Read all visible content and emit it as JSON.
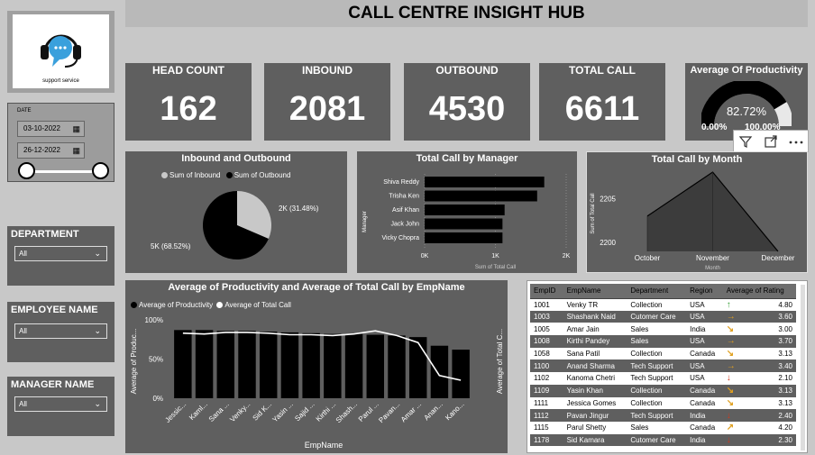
{
  "header": {
    "title": "CALL CENTRE INSIGHT HUB"
  },
  "logo": {
    "caption": "support service"
  },
  "date_slicer": {
    "label": "DATE",
    "start": "03-10-2022",
    "end": "26-12-2022"
  },
  "filters": [
    {
      "title": "DEPARTMENT",
      "value": "All"
    },
    {
      "title": "EMPLOYEE NAME",
      "value": "All"
    },
    {
      "title": "MANAGER NAME",
      "value": "All"
    }
  ],
  "kpis": [
    {
      "title": "HEAD COUNT",
      "value": "162"
    },
    {
      "title": "INBOUND",
      "value": "2081"
    },
    {
      "title": "OUTBOUND",
      "value": "4530"
    },
    {
      "title": "TOTAL CALL",
      "value": "6611"
    }
  ],
  "gauge": {
    "title": "Average Of Productivity",
    "value": "82.72%",
    "fraction": 0.8272,
    "min_label": "0.00%",
    "max_label": "100.00%"
  },
  "visual_header_icons": [
    "filter-icon",
    "focus-mode-icon",
    "more-options-icon"
  ],
  "chart_data": [
    {
      "type": "pie",
      "title": "Inbound and Outbound",
      "legend": [
        "Sum of Inbound",
        "Sum of Outbound"
      ],
      "slices": [
        {
          "name": "Sum of Inbound",
          "value": 2081,
          "label": "2K (31.48%)",
          "color": "#c8c8c8"
        },
        {
          "name": "Sum of Outbound",
          "value": 4530,
          "label": "5K (68.52%)",
          "color": "#000000"
        }
      ]
    },
    {
      "type": "bar",
      "orientation": "horizontal",
      "title": "Total Call by Manager",
      "categories": [
        "Shiva Reddy",
        "Trisha Ken",
        "Asif Khan",
        "Jack John",
        "Vicky Chopra"
      ],
      "values": [
        1690,
        1590,
        1130,
        1100,
        1100
      ],
      "xlabel": "Sum of Total Call",
      "ylabel": "Manager",
      "xlim": [
        0,
        2000
      ],
      "xticks": [
        "0K",
        "1K",
        "2K"
      ]
    },
    {
      "type": "area",
      "title": "Total Call by Month",
      "categories": [
        "October",
        "November",
        "December"
      ],
      "values": [
        2203,
        2208,
        2199
      ],
      "xlabel": "Month",
      "ylabel": "Sum of Total Call",
      "ylim": [
        2199,
        2208
      ],
      "yticks": [
        "2200",
        "2205"
      ]
    },
    {
      "type": "bar",
      "title": "Average of Productivity and Average of Total Call by EmpName",
      "legend": [
        "Average of Productivity",
        "Average of Total Call"
      ],
      "categories": [
        "Jessic...",
        "Kaml...",
        "Sana ...",
        "Venky...",
        "Sid K...",
        "Yasin ...",
        "Sajid ...",
        "Kirthi ...",
        "Shash...",
        "Parul ...",
        "Pavan...",
        "Amar ...",
        "Anan...",
        "Kano..."
      ],
      "series": [
        {
          "name": "Average of Productivity",
          "type": "bar",
          "values": [
            87,
            87,
            86,
            86,
            85,
            84,
            83,
            82,
            82,
            81,
            80,
            78,
            67,
            62
          ]
        },
        {
          "name": "Average of Total Call",
          "type": "line",
          "values": [
            41.5,
            41,
            42,
            42,
            41.5,
            40.5,
            40.5,
            40,
            41,
            43,
            40,
            35.5,
            14.5,
            11.5
          ]
        }
      ],
      "xlabel": "EmpName",
      "ylabel_left": "Average of Produc...",
      "ylabel_right": "Average of Total C...",
      "yticks_left": [
        "0%",
        "50%",
        "100%"
      ],
      "ylim_left": [
        0,
        100
      ],
      "ylim_right": [
        0,
        50
      ]
    }
  ],
  "rating_table": {
    "columns": [
      "EmpID",
      "EmpName",
      "Department",
      "Region",
      "Average of Rating"
    ],
    "rows": [
      {
        "id": "1001",
        "name": "Venky TR",
        "dept": "Collection",
        "region": "USA",
        "trend": "up",
        "rating": "4.80"
      },
      {
        "id": "1003",
        "name": "Shashank Naid",
        "dept": "Cutomer Care",
        "region": "USA",
        "trend": "right",
        "rating": "3.60"
      },
      {
        "id": "1005",
        "name": "Amar Jain",
        "dept": "Sales",
        "region": "India",
        "trend": "down-right",
        "rating": "3.00"
      },
      {
        "id": "1008",
        "name": "Kirthi Pandey",
        "dept": "Sales",
        "region": "USA",
        "trend": "right",
        "rating": "3.70"
      },
      {
        "id": "1058",
        "name": "Sana Patil",
        "dept": "Collection",
        "region": "Canada",
        "trend": "down-right",
        "rating": "3.13"
      },
      {
        "id": "1100",
        "name": "Anand Sharma",
        "dept": "Tech Support",
        "region": "USA",
        "trend": "right",
        "rating": "3.40"
      },
      {
        "id": "1102",
        "name": "Kanoma Chetri",
        "dept": "Tech Support",
        "region": "USA",
        "trend": "down",
        "rating": "2.10"
      },
      {
        "id": "1109",
        "name": "Yasin Khan",
        "dept": "Collection",
        "region": "Canada",
        "trend": "down-right",
        "rating": "3.13"
      },
      {
        "id": "1111",
        "name": "Jessica Gomes",
        "dept": "Collection",
        "region": "Canada",
        "trend": "down-right",
        "rating": "3.13"
      },
      {
        "id": "1112",
        "name": "Pavan Jingur",
        "dept": "Tech Support",
        "region": "India",
        "trend": "down",
        "rating": "2.40"
      },
      {
        "id": "1115",
        "name": "Parul Shetty",
        "dept": "Sales",
        "region": "Canada",
        "trend": "up-right",
        "rating": "4.20"
      },
      {
        "id": "1178",
        "name": "Sid Kamara",
        "dept": "Cutomer Care",
        "region": "India",
        "trend": "down",
        "rating": "2.30"
      }
    ],
    "trend_colors": {
      "up": "#3aa13a",
      "up-right": "#e0a020",
      "right": "#e0a020",
      "down-right": "#e0a020",
      "down": "#d23a1e"
    }
  }
}
